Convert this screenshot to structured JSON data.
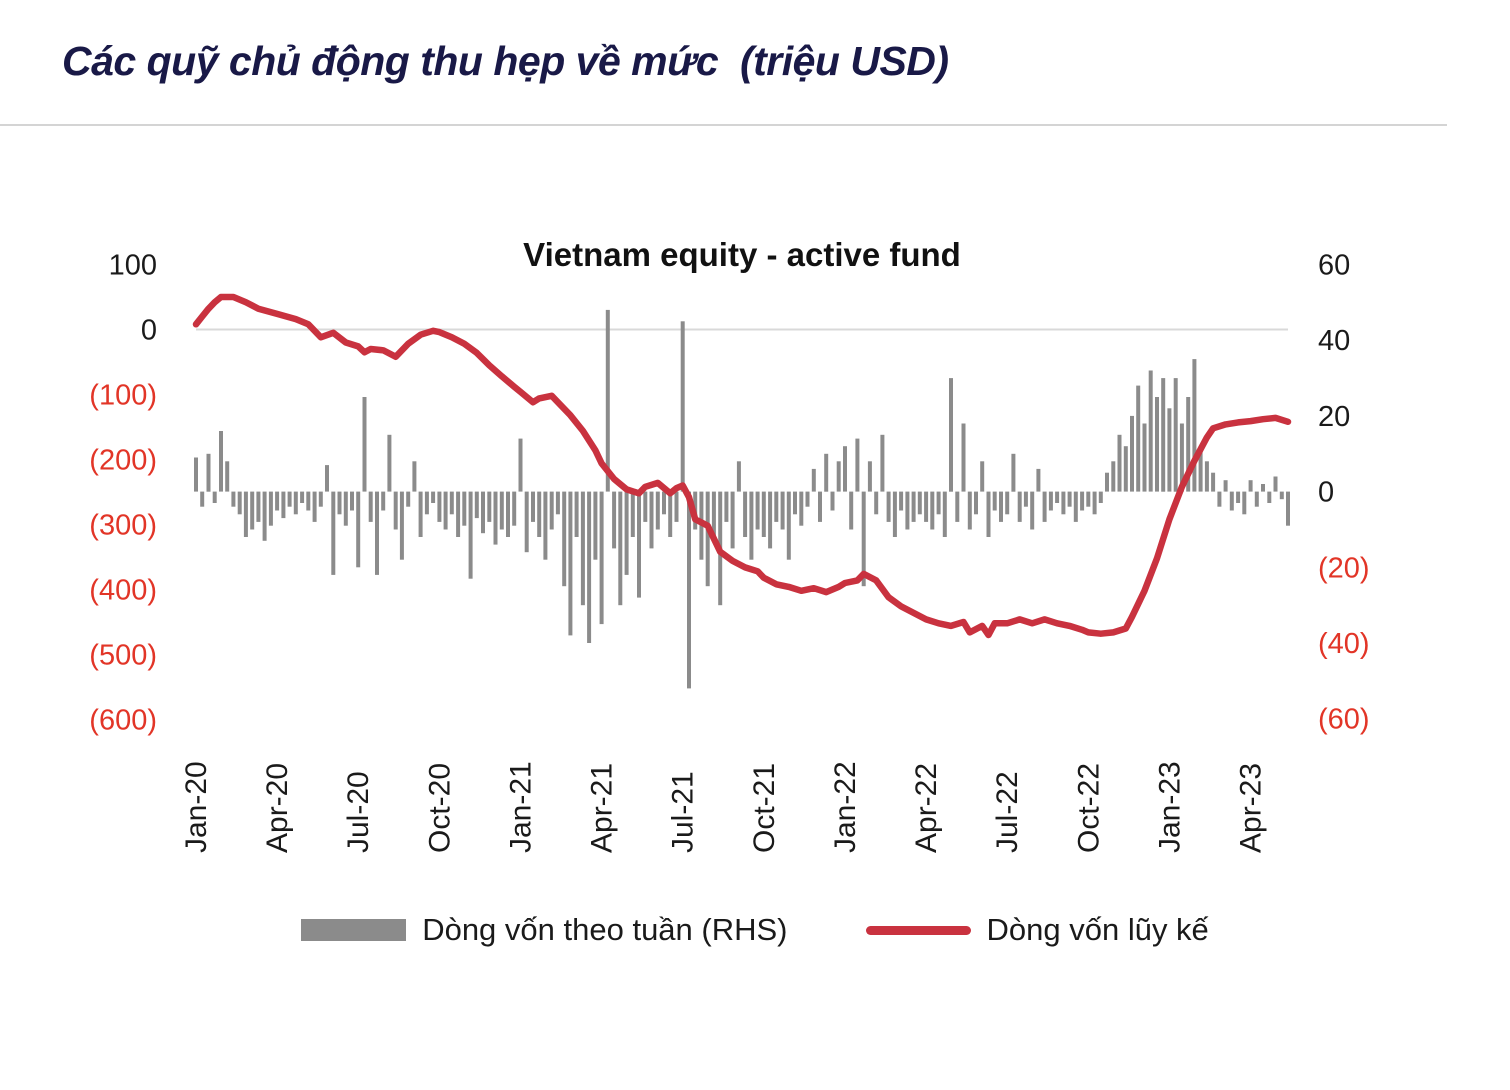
{
  "page": {
    "title": "Các quỹ chủ động thu hẹp về mức  (triệu USD)"
  },
  "colors": {
    "bar": "#8b8b8b",
    "line": "#c9323f",
    "negative_label": "#e23527",
    "positive_label": "#1a1a1a",
    "title": "#191947",
    "gridline": "#d9d9d9"
  },
  "chart_data": {
    "type": "bar+line combo",
    "title": "Vietnam equity - active fund",
    "x_labels": [
      "Jan-20",
      "Apr-20",
      "Jul-20",
      "Oct-20",
      "Jan-21",
      "Apr-21",
      "Jul-21",
      "Oct-21",
      "Jan-22",
      "Apr-22",
      "Jul-22",
      "Oct-22",
      "Jan-23",
      "Apr-23"
    ],
    "weeks_per_label": 13,
    "n_weeks": 176,
    "left_axis": {
      "unit": "triệu USD",
      "labels": [
        "100",
        "0",
        "(100)",
        "(200)",
        "(300)",
        "(400)",
        "(500)",
        "(600)"
      ],
      "values": [
        100,
        0,
        -100,
        -200,
        -300,
        -400,
        -500,
        -600
      ],
      "min": -600,
      "max": 100
    },
    "right_axis": {
      "labels": [
        "60",
        "40",
        "20",
        "0",
        "(20)",
        "(40)",
        "(60)"
      ],
      "values": [
        60,
        40,
        20,
        0,
        -20,
        -40,
        -60
      ],
      "min": -60,
      "max": 60
    },
    "gridline": {
      "axis": "left",
      "value": 0
    },
    "series": [
      {
        "name": "Dòng vốn theo tuần (RHS)",
        "type": "bar",
        "axis": "right",
        "values": [
          9,
          -4,
          10,
          -3,
          16,
          8,
          -4,
          -6,
          -12,
          -10,
          -8,
          -13,
          -9,
          -5,
          -7,
          -4,
          -6,
          -3,
          -5,
          -8,
          -4,
          7,
          -22,
          -6,
          -9,
          -5,
          -20,
          25,
          -8,
          -22,
          -5,
          15,
          -10,
          -18,
          -4,
          8,
          -12,
          -6,
          -3,
          -8,
          -10,
          -6,
          -12,
          -9,
          -23,
          -7,
          -11,
          -8,
          -14,
          -10,
          -12,
          -9,
          14,
          -16,
          -8,
          -12,
          -18,
          -10,
          -6,
          -25,
          -38,
          -12,
          -30,
          -40,
          -18,
          -35,
          48,
          -15,
          -30,
          -22,
          -12,
          -28,
          -8,
          -15,
          -10,
          -6,
          -12,
          -8,
          45,
          -52,
          -10,
          -18,
          -25,
          -12,
          -30,
          -8,
          -15,
          8,
          -12,
          -18,
          -10,
          -12,
          -15,
          -8,
          -10,
          -18,
          -6,
          -9,
          -4,
          6,
          -8,
          10,
          -5,
          8,
          12,
          -10,
          14,
          -25,
          8,
          -6,
          15,
          -8,
          -12,
          -5,
          -10,
          -8,
          -6,
          -8,
          -10,
          -6,
          -12,
          30,
          -8,
          18,
          -10,
          -6,
          8,
          -12,
          -5,
          -8,
          -6,
          10,
          -8,
          -4,
          -10,
          6,
          -8,
          -5,
          -3,
          -6,
          -4,
          -8,
          -5,
          -4,
          -6,
          -3,
          5,
          8,
          15,
          12,
          20,
          28,
          18,
          32,
          25,
          30,
          22,
          30,
          18,
          25,
          35,
          12,
          8,
          5,
          -4,
          3,
          -5,
          -3,
          -6,
          3,
          -4,
          2,
          -3,
          4,
          -2,
          -9
        ]
      },
      {
        "name": "Dòng vốn lũy kế",
        "type": "line",
        "axis": "left",
        "points": [
          [
            0,
            8
          ],
          [
            1,
            20
          ],
          [
            2,
            32
          ],
          [
            3,
            42
          ],
          [
            4,
            50
          ],
          [
            6,
            50
          ],
          [
            8,
            42
          ],
          [
            10,
            32
          ],
          [
            13,
            24
          ],
          [
            16,
            16
          ],
          [
            18,
            8
          ],
          [
            20,
            -12
          ],
          [
            22,
            -5
          ],
          [
            24,
            -20
          ],
          [
            26,
            -26
          ],
          [
            27,
            -35
          ],
          [
            28,
            -30
          ],
          [
            30,
            -32
          ],
          [
            32,
            -42
          ],
          [
            34,
            -22
          ],
          [
            36,
            -8
          ],
          [
            38,
            -2
          ],
          [
            39,
            -4
          ],
          [
            41,
            -12
          ],
          [
            43,
            -22
          ],
          [
            45,
            -36
          ],
          [
            47,
            -55
          ],
          [
            49,
            -72
          ],
          [
            51,
            -88
          ],
          [
            52,
            -96
          ],
          [
            54,
            -112
          ],
          [
            55,
            -106
          ],
          [
            57,
            -102
          ],
          [
            58,
            -112
          ],
          [
            60,
            -132
          ],
          [
            62,
            -156
          ],
          [
            64,
            -186
          ],
          [
            65,
            -206
          ],
          [
            67,
            -230
          ],
          [
            69,
            -246
          ],
          [
            71,
            -252
          ],
          [
            72,
            -242
          ],
          [
            74,
            -236
          ],
          [
            76,
            -252
          ],
          [
            77,
            -244
          ],
          [
            78,
            -240
          ],
          [
            79,
            -258
          ],
          [
            80,
            -292
          ],
          [
            82,
            -302
          ],
          [
            84,
            -342
          ],
          [
            86,
            -356
          ],
          [
            88,
            -366
          ],
          [
            90,
            -372
          ],
          [
            91,
            -382
          ],
          [
            93,
            -392
          ],
          [
            95,
            -396
          ],
          [
            97,
            -402
          ],
          [
            99,
            -398
          ],
          [
            101,
            -404
          ],
          [
            103,
            -396
          ],
          [
            104,
            -390
          ],
          [
            106,
            -386
          ],
          [
            107,
            -376
          ],
          [
            109,
            -386
          ],
          [
            111,
            -412
          ],
          [
            113,
            -426
          ],
          [
            115,
            -436
          ],
          [
            117,
            -446
          ],
          [
            119,
            -452
          ],
          [
            121,
            -456
          ],
          [
            123,
            -450
          ],
          [
            124,
            -466
          ],
          [
            126,
            -456
          ],
          [
            127,
            -470
          ],
          [
            128,
            -452
          ],
          [
            130,
            -452
          ],
          [
            132,
            -446
          ],
          [
            134,
            -452
          ],
          [
            136,
            -446
          ],
          [
            138,
            -452
          ],
          [
            140,
            -456
          ],
          [
            142,
            -462
          ],
          [
            143,
            -466
          ],
          [
            145,
            -468
          ],
          [
            147,
            -466
          ],
          [
            149,
            -460
          ],
          [
            150,
            -442
          ],
          [
            152,
            -402
          ],
          [
            154,
            -352
          ],
          [
            156,
            -292
          ],
          [
            158,
            -242
          ],
          [
            160,
            -202
          ],
          [
            162,
            -166
          ],
          [
            163,
            -152
          ],
          [
            165,
            -146
          ],
          [
            167,
            -143
          ],
          [
            169,
            -141
          ],
          [
            171,
            -138
          ],
          [
            173,
            -136
          ],
          [
            175,
            -142
          ]
        ]
      }
    ]
  }
}
